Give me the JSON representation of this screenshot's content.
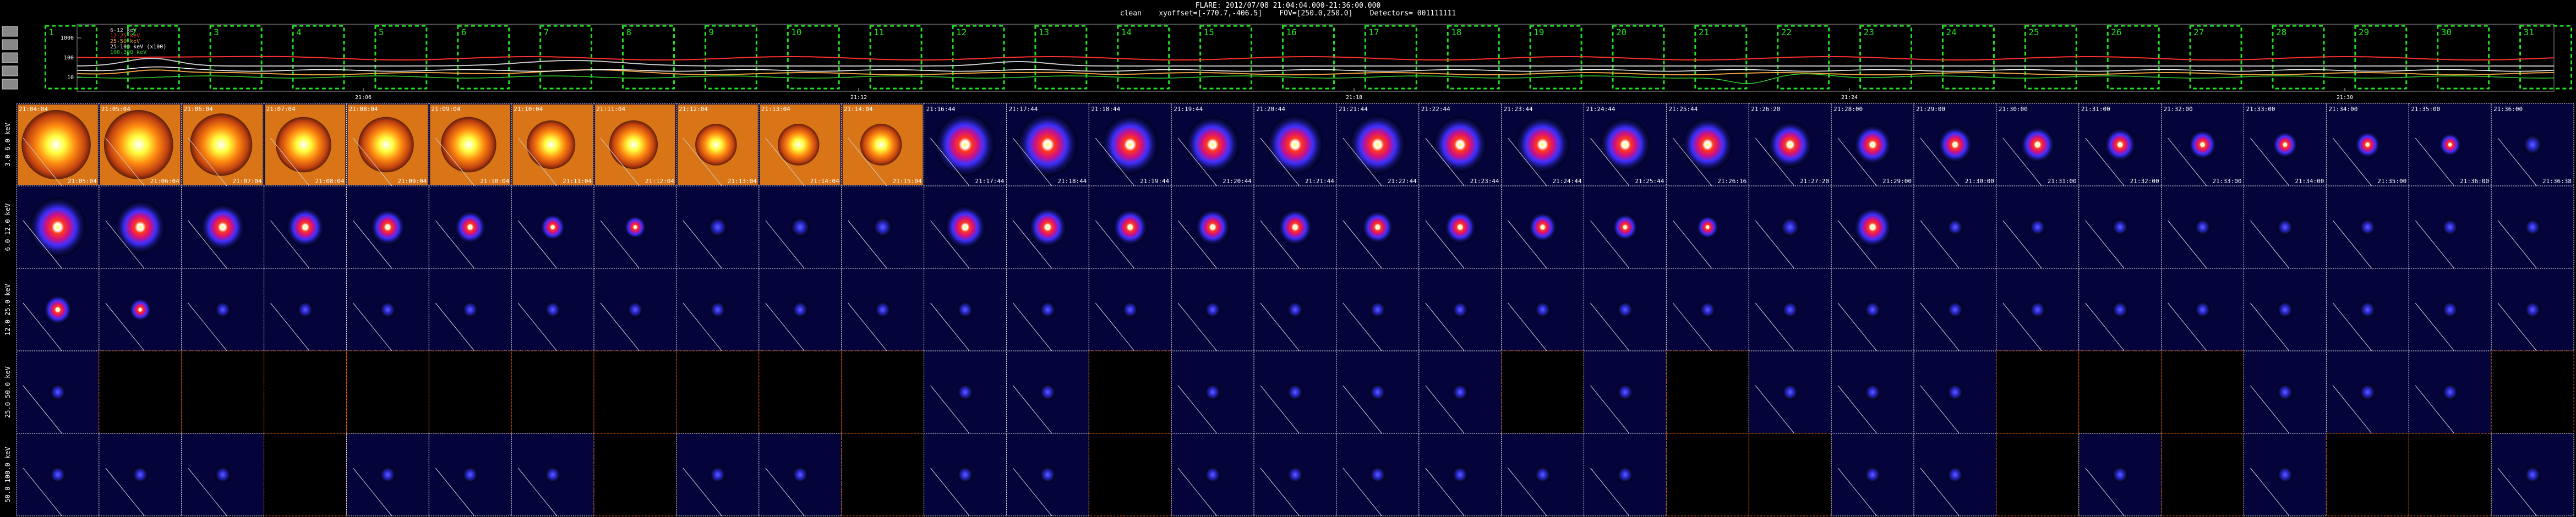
{
  "header": {
    "line1": "FLARE: 2012/07/08 21:04:04.000-21:36:00.000",
    "line2": "clean    xyoffset=[-770.7,-406.5]    FOV=[250.0,250.0]    Detectors= 001111111"
  },
  "lightcurve": {
    "legend": [
      {
        "label": "6-12 keV",
        "color": "#c8c8c8"
      },
      {
        "label": "12-25 keV",
        "color": "#ff3030"
      },
      {
        "label": "25-50 keV",
        "color": "#e8a040"
      },
      {
        "label": "25-100 keV (x100)",
        "color": "#ffffff"
      },
      {
        "label": "100-300 keV",
        "color": "#30d030"
      }
    ],
    "y_ticks": [
      "10",
      "100",
      "1000"
    ],
    "x_ticks": [
      "21:06",
      "21:12",
      "21:18",
      "21:24",
      "21:30",
      "21:36"
    ],
    "interval_labels": [
      "1",
      "2",
      "3",
      "4",
      "5",
      "6",
      "7",
      "8",
      "9",
      "10",
      "11",
      "12",
      "13",
      "14",
      "15",
      "16",
      "17",
      "18",
      "19",
      "20",
      "21",
      "22",
      "23",
      "24",
      "25",
      "26",
      "27",
      "28",
      "29",
      "30",
      "31"
    ]
  },
  "colors": {
    "interval_box": "#20e020",
    "cell_border": "#ffffff",
    "empty_border": "#ff6a00",
    "timestamp": "#ffffff",
    "flux": "#40ff40"
  },
  "bands": [
    {
      "label": "3.0-6.0 keV"
    },
    {
      "label": "6.0-12.0 keV"
    },
    {
      "label": "12.0-25.0 keV"
    },
    {
      "label": "25.0-50.0 keV"
    },
    {
      "label": "50.0-100.0 keV"
    }
  ],
  "columns": [
    {
      "start": "21:04:04",
      "end": "21:05:04"
    },
    {
      "start": "21:05:04",
      "end": "21:06:04"
    },
    {
      "start": "21:06:04",
      "end": "21:07:04"
    },
    {
      "start": "21:07:04",
      "end": "21:08:04"
    },
    {
      "start": "21:08:04",
      "end": "21:09:04"
    },
    {
      "start": "21:09:04",
      "end": "21:10:04"
    },
    {
      "start": "21:10:04",
      "end": "21:11:04"
    },
    {
      "start": "21:11:04",
      "end": "21:12:04"
    },
    {
      "start": "21:12:04",
      "end": "21:13:04"
    },
    {
      "start": "21:13:04",
      "end": "21:14:04"
    },
    {
      "start": "21:14:04",
      "end": "21:15:04"
    },
    {
      "start": "21:16:44",
      "end": "21:17:44"
    },
    {
      "start": "21:17:44",
      "end": "21:18:44"
    },
    {
      "start": "21:18:44",
      "end": "21:19:44"
    },
    {
      "start": "21:19:44",
      "end": "21:20:44"
    },
    {
      "start": "21:20:44",
      "end": "21:21:44"
    },
    {
      "start": "21:21:44",
      "end": "21:22:44"
    },
    {
      "start": "21:22:44",
      "end": "21:23:44"
    },
    {
      "start": "21:23:44",
      "end": "21:24:44"
    },
    {
      "start": "21:24:44",
      "end": "21:25:44"
    },
    {
      "start": "21:25:44",
      "end": "21:26:16"
    },
    {
      "start": "21:26:20",
      "end": "21:27:20"
    },
    {
      "start": "21:28:00",
      "end": "21:29:00"
    },
    {
      "start": "21:29:00",
      "end": "21:30:00"
    },
    {
      "start": "21:30:00",
      "end": "21:31:00"
    },
    {
      "start": "21:31:00",
      "end": "21:32:00"
    },
    {
      "start": "21:32:00",
      "end": "21:33:00"
    },
    {
      "start": "21:33:00",
      "end": "21:34:00"
    },
    {
      "start": "21:34:00",
      "end": "21:35:00"
    },
    {
      "start": "21:35:00",
      "end": "21:36:00"
    },
    {
      "start": "21:36:00",
      "end": "21:36:38"
    }
  ],
  "chart_data": {
    "type": "heatmap",
    "title": "FLARE: 2012/07/08 21:04:04.000-21:36:00.000",
    "rows": [
      "3.0-6.0 keV",
      "6.0-12.0 keV",
      "12.0-25.0 keV",
      "25.0-50.0 keV",
      "50.0-100.0 keV"
    ],
    "cols": 31,
    "image_present": [
      [
        1,
        1,
        1,
        1,
        1,
        1,
        1,
        1,
        1,
        1,
        1,
        1,
        1,
        1,
        1,
        1,
        1,
        1,
        1,
        1,
        1,
        1,
        1,
        1,
        1,
        1,
        1,
        1,
        1,
        1,
        1
      ],
      [
        1,
        1,
        1,
        1,
        1,
        1,
        1,
        1,
        1,
        1,
        1,
        1,
        1,
        1,
        1,
        1,
        1,
        1,
        1,
        1,
        1,
        1,
        1,
        1,
        1,
        1,
        1,
        1,
        1,
        1,
        1
      ],
      [
        1,
        1,
        1,
        1,
        1,
        1,
        1,
        1,
        1,
        1,
        1,
        1,
        1,
        1,
        1,
        1,
        1,
        1,
        1,
        1,
        1,
        1,
        1,
        1,
        1,
        1,
        1,
        1,
        1,
        1,
        1
      ],
      [
        1,
        0,
        0,
        0,
        0,
        0,
        0,
        0,
        0,
        0,
        0,
        1,
        1,
        0,
        1,
        1,
        1,
        1,
        0,
        1,
        0,
        1,
        1,
        1,
        0,
        0,
        0,
        1,
        1,
        1,
        0
      ],
      [
        1,
        1,
        1,
        0,
        1,
        1,
        1,
        0,
        1,
        1,
        0,
        1,
        1,
        0,
        1,
        1,
        1,
        1,
        1,
        1,
        0,
        0,
        1,
        1,
        0,
        1,
        0,
        1,
        0,
        0,
        1
      ]
    ],
    "intensity": [
      [
        1.0,
        1.0,
        0.9,
        0.8,
        0.8,
        0.8,
        0.7,
        0.7,
        0.6,
        0.6,
        0.6,
        0.95,
        0.95,
        0.9,
        0.85,
        0.9,
        0.9,
        0.85,
        0.85,
        0.8,
        0.8,
        0.7,
        0.6,
        0.55,
        0.55,
        0.5,
        0.45,
        0.4,
        0.4,
        0.35,
        0.3
      ],
      [
        0.9,
        0.8,
        0.7,
        0.6,
        0.55,
        0.5,
        0.4,
        0.35,
        0.3,
        0.3,
        0.3,
        0.65,
        0.6,
        0.55,
        0.55,
        0.55,
        0.5,
        0.5,
        0.45,
        0.4,
        0.35,
        0.3,
        0.6,
        0.25,
        0.25,
        0.2,
        0.2,
        0.2,
        0.18,
        0.15,
        0.12
      ],
      [
        0.45,
        0.35,
        0.25,
        0.2,
        0.15,
        0.12,
        0.1,
        0.1,
        0.08,
        0.08,
        0.1,
        0.2,
        0.18,
        0.15,
        0.15,
        0.15,
        0.12,
        0.12,
        0.1,
        0.1,
        0.08,
        0.08,
        0.08,
        0.08,
        0.07,
        0.06,
        0.06,
        0.05,
        0.05,
        0.05,
        0.05
      ],
      [
        0.05,
        0,
        0,
        0,
        0,
        0,
        0,
        0,
        0,
        0,
        0,
        0.05,
        0.05,
        0,
        0.05,
        0.05,
        0.05,
        0.05,
        0,
        0.05,
        0,
        0.05,
        0.05,
        0.05,
        0,
        0,
        0,
        0.05,
        0.05,
        0.05,
        0
      ],
      [
        0.12,
        0.12,
        0.12,
        0,
        0.12,
        0.12,
        0.12,
        0,
        0.12,
        0.12,
        0,
        0.1,
        0.1,
        0,
        0.1,
        0.1,
        0.1,
        0.1,
        0.1,
        0.1,
        0,
        0,
        0.1,
        0.1,
        0,
        0.1,
        0,
        0.1,
        0,
        0,
        0.12
      ]
    ],
    "flux_labels": [
      [
        "",
        "",
        "",
        "",
        "",
        "",
        "",
        "",
        "",
        "",
        "",
        "",
        "",
        "",
        "",
        "",
        "",
        "",
        "",
        "",
        "",
        "",
        "",
        "",
        "",
        "",
        "",
        "",
        "",
        "",
        ""
      ],
      [
        "",
        "",
        "",
        "",
        "",
        "",
        "",
        "",
        "",
        "",
        "",
        "",
        "",
        "",
        "",
        "",
        "",
        "",
        "",
        "",
        "",
        "",
        "",
        "",
        "",
        "",
        "",
        "",
        "",
        "",
        ""
      ],
      [
        "",
        "",
        "",
        "",
        "",
        "",
        "",
        "",
        "",
        "",
        "",
        "",
        "",
        "",
        "",
        "",
        "",
        "",
        "",
        "",
        "",
        "",
        "",
        "",
        "",
        "",
        "",
        "",
        "",
        "",
        ""
      ],
      [
        "",
        "",
        "",
        "",
        "",
        "",
        "",
        "",
        "",
        "",
        "",
        "",
        "",
        "",
        "",
        "",
        "",
        "",
        "",
        "",
        "",
        "",
        "",
        "",
        "",
        "",
        "",
        "",
        "",
        "",
        ""
      ],
      [
        "",
        "",
        "",
        "",
        "",
        "",
        "",
        "",
        "",
        "",
        "",
        "",
        "",
        "",
        "",
        "",
        "",
        "",
        "",
        "",
        "",
        "",
        "",
        "",
        "",
        "",
        "",
        "",
        "",
        "",
        ""
      ]
    ]
  }
}
